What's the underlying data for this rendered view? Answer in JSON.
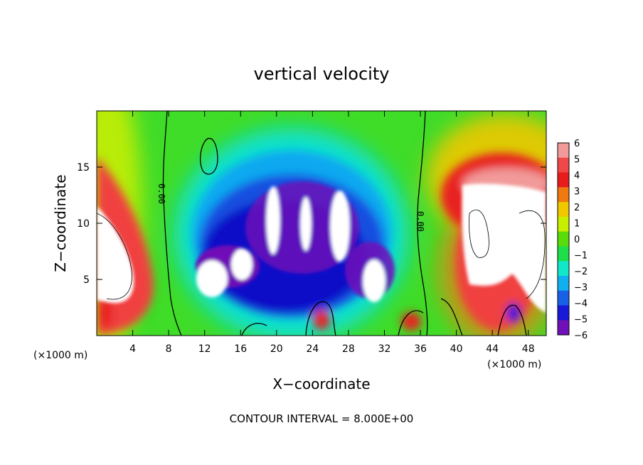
{
  "chart_data": {
    "type": "heatmap",
    "title": "vertical velocity",
    "xlabel": "X−coordinate",
    "ylabel": "Z−coordinate",
    "x_unit_label_left": "(×1000 m)",
    "x_unit_label_right": "(×1000 m)",
    "xlim": [
      0,
      50
    ],
    "ylim": [
      0,
      20
    ],
    "x_ticks": [
      4,
      8,
      12,
      16,
      20,
      24,
      28,
      32,
      36,
      40,
      44,
      48
    ],
    "x_tick_labels": [
      "4",
      "8",
      "12",
      "16",
      "20",
      "24",
      "28",
      "32",
      "36",
      "40",
      "44",
      "48"
    ],
    "y_ticks": [
      5,
      10,
      15
    ],
    "y_tick_labels": [
      "5",
      "10",
      "15"
    ],
    "colorbar": {
      "levels": [
        6,
        5,
        4,
        3,
        2,
        1,
        0,
        -1,
        -2,
        -3,
        -4,
        -5,
        -6
      ],
      "labels": [
        "6",
        "5",
        "4",
        "3",
        "2",
        "1",
        "0",
        "−1",
        "−2",
        "−3",
        "−4",
        "−5",
        "−6"
      ],
      "colors": [
        "#f29a9a",
        "#f04848",
        "#e81c1c",
        "#f07a10",
        "#f0c800",
        "#c8ee00",
        "#5adc0a",
        "#1ede4a",
        "#10e8c8",
        "#10b0f0",
        "#1860e8",
        "#1818d8",
        "#7010b8"
      ]
    },
    "contour_labels": [
      "0.00",
      "0.00"
    ],
    "footer": "CONTOUR INTERVAL = 8.000E+00",
    "grid": false
  }
}
